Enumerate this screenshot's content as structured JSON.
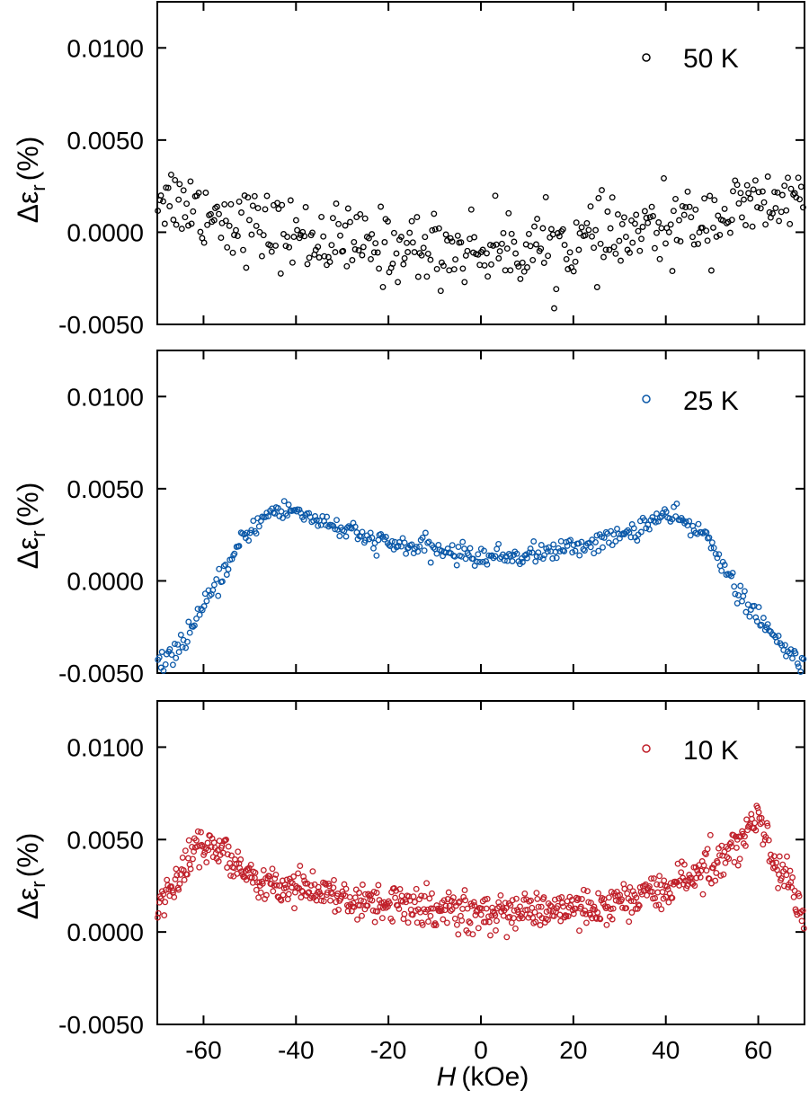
{
  "chart_data": {
    "type": "scatter",
    "xlabel_italic": "H",
    "xlabel_unit": "(kOe)",
    "ylabel_symbol": "Δε",
    "ylabel_sub": "r",
    "ylabel_unit": "(%)",
    "xlim": [
      -70,
      70
    ],
    "ylim": [
      -0.005,
      0.0125
    ],
    "xticks": [
      -60,
      -40,
      -20,
      0,
      20,
      40,
      60
    ],
    "xtick_labels": [
      "-60",
      "-40",
      "-20",
      "0",
      "20",
      "40",
      "60"
    ],
    "yticks": [
      -0.005,
      0.0,
      0.005,
      0.01
    ],
    "ytick_labels": [
      "-0.0050",
      "0.0000",
      "0.0050",
      "0.0100"
    ],
    "panels": [
      {
        "legend": "50 K",
        "color": "#000000",
        "trend": [
          [
            -70,
            0.0022
          ],
          [
            -60,
            0.0012
          ],
          [
            -50,
            0.0004
          ],
          [
            -40,
            -0.0002
          ],
          [
            -30,
            -0.0006
          ],
          [
            -20,
            -0.0008
          ],
          [
            -10,
            -0.0009
          ],
          [
            0,
            -0.0009
          ],
          [
            10,
            -0.0008
          ],
          [
            20,
            -0.0006
          ],
          [
            30,
            -0.0003
          ],
          [
            40,
            0.0002
          ],
          [
            50,
            0.0008
          ],
          [
            60,
            0.0014
          ],
          [
            70,
            0.0018
          ]
        ],
        "scatter": 0.0018,
        "n_points": 380
      },
      {
        "legend": "25 K",
        "color": "#0a58a8",
        "trend": [
          [
            -70,
            -0.0047
          ],
          [
            -65,
            -0.0035
          ],
          [
            -60,
            -0.0015
          ],
          [
            -55,
            0.0007
          ],
          [
            -50,
            0.0028
          ],
          [
            -45,
            0.0038
          ],
          [
            -40,
            0.0038
          ],
          [
            -35,
            0.0033
          ],
          [
            -30,
            0.0028
          ],
          [
            -25,
            0.0023
          ],
          [
            -20,
            0.002
          ],
          [
            -10,
            0.0017
          ],
          [
            0,
            0.0013
          ],
          [
            10,
            0.0014
          ],
          [
            20,
            0.0018
          ],
          [
            30,
            0.0024
          ],
          [
            35,
            0.003
          ],
          [
            40,
            0.0036
          ],
          [
            45,
            0.003
          ],
          [
            50,
            0.0022
          ],
          [
            55,
            -0.0005
          ],
          [
            60,
            -0.002
          ],
          [
            65,
            -0.0036
          ],
          [
            70,
            -0.0045
          ]
        ],
        "scatter": 0.0005,
        "n_points": 420
      },
      {
        "legend": "10 K",
        "color": "#c0202a",
        "trend": [
          [
            -70,
            0.0015
          ],
          [
            -66,
            0.0028
          ],
          [
            -62,
            0.0045
          ],
          [
            -58,
            0.0048
          ],
          [
            -55,
            0.004
          ],
          [
            -50,
            0.003
          ],
          [
            -40,
            0.0024
          ],
          [
            -30,
            0.0019
          ],
          [
            -20,
            0.0015
          ],
          [
            -10,
            0.0012
          ],
          [
            0,
            0.001
          ],
          [
            10,
            0.0011
          ],
          [
            20,
            0.0013
          ],
          [
            30,
            0.0017
          ],
          [
            40,
            0.0023
          ],
          [
            46,
            0.003
          ],
          [
            50,
            0.0036
          ],
          [
            55,
            0.0045
          ],
          [
            58,
            0.006
          ],
          [
            60,
            0.0065
          ],
          [
            63,
            0.004
          ],
          [
            66,
            0.003
          ],
          [
            70,
            0.0005
          ]
        ],
        "scatter": 0.0006,
        "n_points": 700
      }
    ]
  }
}
